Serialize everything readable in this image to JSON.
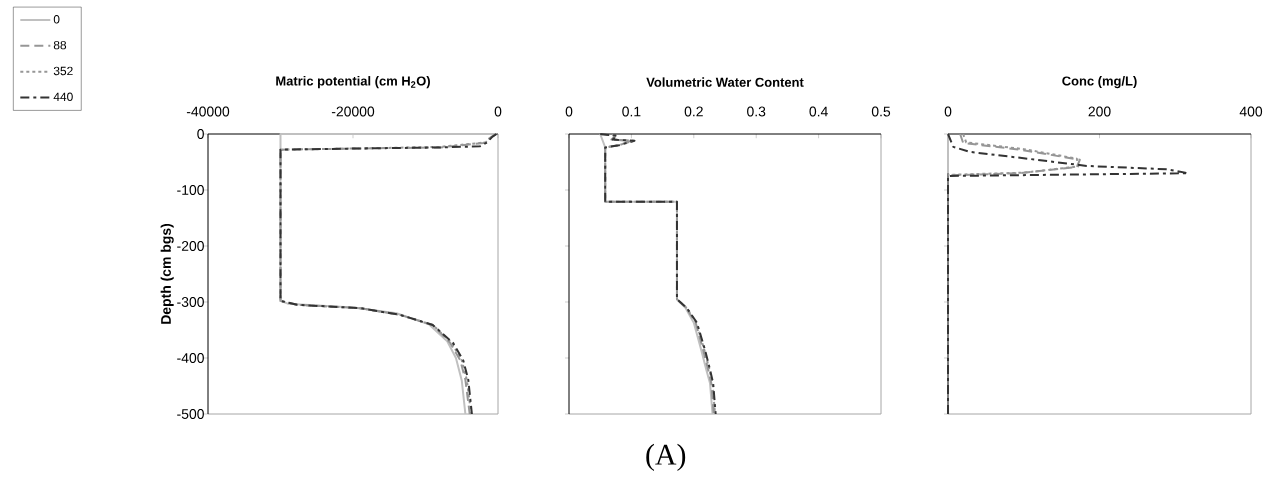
{
  "chart_data": [
    {
      "type": "line",
      "title": "Matric potential (cm H$_{2}$O)",
      "ylabel": "Depth (cm bgs)",
      "xlim": [
        -40000,
        0
      ],
      "ylim": [
        -500,
        0
      ],
      "xticks": [
        -40000,
        -20000,
        0
      ],
      "yticks": [
        0,
        -100,
        -200,
        -300,
        -400,
        -500
      ],
      "legend": "left",
      "series": [
        {
          "name": "0",
          "color": "#c0c0c0",
          "line_style": "solid",
          "x": [
            -100,
            -30000,
            -30000,
            -29000,
            -20000,
            -14000,
            -9500,
            -7000,
            -5800,
            -5000,
            -4500
          ],
          "values": [
            0,
            0,
            -298,
            -303,
            -310,
            -320,
            -340,
            -370,
            -400,
            -440,
            -500
          ]
        },
        {
          "name": "88",
          "color": "#969696",
          "line_style": "dashed",
          "x": [
            -300,
            -1000,
            -2000,
            -8000,
            -20000,
            -30000,
            -30000,
            -27700,
            -19000,
            -13500,
            -9000,
            -6600,
            -5200,
            -4500,
            -3900
          ],
          "values": [
            0,
            -6,
            -16,
            -24,
            -26,
            -28,
            -298,
            -305,
            -311,
            -323,
            -341,
            -373,
            -404,
            -439,
            -500
          ]
        },
        {
          "name": "352",
          "color": "#969696",
          "line_style": "dotted",
          "x": [
            -250,
            -900,
            -1700,
            -8000,
            -20000,
            -30000,
            -30000,
            -27700,
            -19000,
            -13500,
            -9000,
            -6400,
            -5000,
            -4300,
            -3700
          ],
          "values": [
            0,
            -5,
            -15,
            -23,
            -26,
            -28,
            -298,
            -305,
            -311,
            -323,
            -341,
            -373,
            -404,
            -439,
            -500
          ]
        },
        {
          "name": "440",
          "color": "#333333",
          "line_style": "dashdot",
          "x": [
            -200,
            -800,
            -1500,
            -2500,
            -8000,
            -20000,
            -30000,
            -30000,
            -27700,
            -19000,
            -13500,
            -9000,
            -6200,
            -4800,
            -4100,
            -3600
          ],
          "values": [
            0,
            -5,
            -15,
            -22,
            -24,
            -26,
            -28,
            -298,
            -305,
            -311,
            -323,
            -341,
            -373,
            -404,
            -439,
            -500
          ]
        }
      ]
    },
    {
      "type": "line",
      "title": "Volumetric Water Content",
      "xlim": [
        0,
        0.5
      ],
      "ylim": [
        -500,
        0
      ],
      "xticks": [
        0,
        0.1,
        0.2,
        0.3,
        0.4,
        0.5
      ],
      "yticks": [
        0,
        -100,
        -200,
        -300,
        -400,
        -500
      ],
      "tick_labels": "x",
      "annotations": [
        "(A)"
      ],
      "series": [
        {
          "color": "#c0c0c0",
          "line_style": "solid",
          "x": [
            0.05,
            0.058,
            0.058,
            0.173,
            0.173,
            0.187,
            0.2,
            0.212,
            0.22,
            0.226,
            0.23
          ],
          "values": [
            0,
            -24,
            -121,
            -121,
            -295,
            -311,
            -337,
            -386,
            -421,
            -445,
            -500
          ]
        },
        {
          "color": "#969696",
          "line_style": "dashed",
          "x": [
            0.05,
            0.075,
            0.068,
            0.1,
            0.08,
            0.058,
            0.058,
            0.173,
            0.173,
            0.188,
            0.203,
            0.215,
            0.223,
            0.228,
            0.232
          ],
          "values": [
            0,
            -3,
            -10,
            -12,
            -20,
            -24,
            -121,
            -121,
            -295,
            -311,
            -337,
            -386,
            -421,
            -445,
            -500
          ]
        },
        {
          "color": "#969696",
          "line_style": "dotted",
          "x": [
            0.05,
            0.076,
            0.069,
            0.103,
            0.08,
            0.058,
            0.058,
            0.173,
            0.173,
            0.189,
            0.204,
            0.217,
            0.225,
            0.23,
            0.234
          ],
          "values": [
            0,
            -3,
            -10,
            -12,
            -20,
            -24,
            -121,
            -121,
            -295,
            -311,
            -337,
            -386,
            -421,
            -445,
            -500
          ]
        },
        {
          "color": "#333333",
          "line_style": "dashdot",
          "x": [
            0.05,
            0.077,
            0.07,
            0.105,
            0.08,
            0.058,
            0.058,
            0.173,
            0.173,
            0.189,
            0.205,
            0.218,
            0.226,
            0.231,
            0.235
          ],
          "values": [
            0,
            -3,
            -10,
            -12,
            -20,
            -24,
            -121,
            -121,
            -295,
            -311,
            -337,
            -386,
            -421,
            -445,
            -500
          ]
        }
      ]
    },
    {
      "type": "line",
      "title": "Conc (mg/L)",
      "xlim": [
        0,
        400
      ],
      "ylim": [
        -500,
        0
      ],
      "xticks": [
        0,
        200,
        400
      ],
      "yticks": [
        0,
        -100,
        -200,
        -300,
        -400,
        -500
      ],
      "tick_labels": "x",
      "series": [
        {
          "color": "#c0c0c0",
          "line_style": "solid",
          "x": [
            0,
            0
          ],
          "values": [
            0,
            -70
          ]
        },
        {
          "color": "#969696",
          "line_style": "dashed",
          "x": [
            16,
            20,
            95,
            174,
            170,
            95,
            0
          ],
          "values": [
            0,
            -16,
            -28,
            -46,
            -59,
            -70,
            -74
          ]
        },
        {
          "color": "#969696",
          "line_style": "dotted",
          "x": [
            20,
            24,
            100,
            170,
            172,
            100,
            0
          ],
          "values": [
            0,
            -15,
            -27,
            -44,
            -58,
            -69,
            -73
          ]
        },
        {
          "color": "#333333",
          "line_style": "dashdot",
          "x": [
            0,
            7,
            29,
            117,
            183,
            289,
            317,
            0,
            0
          ],
          "values": [
            0,
            -23,
            -32,
            -46,
            -57,
            -63,
            -70,
            -75,
            -500
          ]
        }
      ]
    }
  ]
}
